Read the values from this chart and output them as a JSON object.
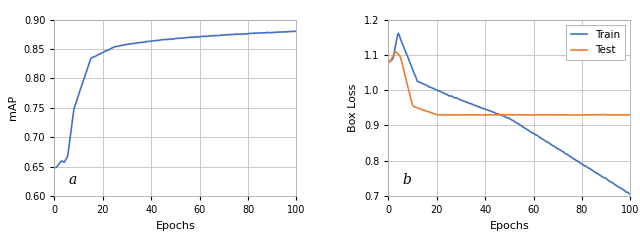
{
  "left_ylabel": "mAP",
  "left_xlabel": "Epochs",
  "left_label": "a",
  "left_ylim": [
    0.6,
    0.9
  ],
  "left_yticks": [
    0.6,
    0.65,
    0.7,
    0.75,
    0.8,
    0.85,
    0.9
  ],
  "left_xlim": [
    0,
    100
  ],
  "left_xticks": [
    0,
    20,
    40,
    60,
    80,
    100
  ],
  "right_ylabel": "Box Loss",
  "right_xlabel": "Epochs",
  "right_label": "b",
  "right_ylim": [
    0.7,
    1.2
  ],
  "right_yticks": [
    0.7,
    0.8,
    0.9,
    1.0,
    1.1,
    1.2
  ],
  "right_xlim": [
    0,
    100
  ],
  "right_xticks": [
    0,
    20,
    40,
    60,
    80,
    100
  ],
  "train_color": "#4472c4",
  "test_color": "#ed7d31",
  "bg_color": "#ffffff",
  "grid_color": "#c0c0c0",
  "fig_bg": "#ffffff",
  "legend_train": "Train",
  "legend_test": "Test"
}
